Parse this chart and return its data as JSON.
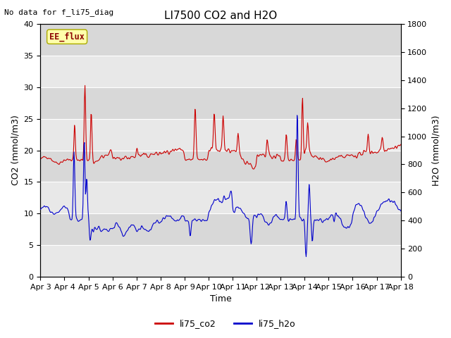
{
  "title": "LI7500 CO2 and H2O",
  "top_left_text": "No data for f_li75_diag",
  "annotation_text": "EE_flux",
  "xlabel": "Time",
  "ylabel_left": "CO2 (mmol/m3)",
  "ylabel_right": "H2O (mmol/m3)",
  "ylim_left": [
    0,
    40
  ],
  "ylim_right": [
    0,
    1800
  ],
  "yticks_left": [
    0,
    5,
    10,
    15,
    20,
    25,
    30,
    35,
    40
  ],
  "yticks_right": [
    0,
    200,
    400,
    600,
    800,
    1000,
    1200,
    1400,
    1600,
    1800
  ],
  "co2_color": "#cc0000",
  "h2o_color": "#0000cc",
  "plot_bg_light": "#e8e8e8",
  "plot_bg_dark": "#d8d8d8",
  "fig_background": "#ffffff",
  "legend_labels": [
    "li75_co2",
    "li75_h2o"
  ],
  "line_width": 0.8,
  "annotation_bg": "#ffffaa",
  "annotation_border": "#aaaa00",
  "title_fontsize": 11,
  "label_fontsize": 9,
  "tick_fontsize": 8
}
